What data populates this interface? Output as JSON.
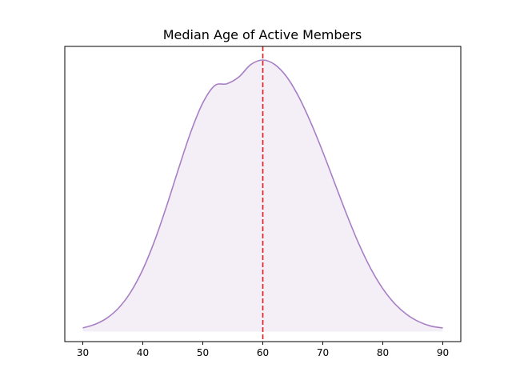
{
  "chart_data": {
    "type": "area",
    "title": "Median Age of Active Members",
    "xlabel": "",
    "ylabel": "",
    "xlim": [
      27,
      93
    ],
    "ylim": [
      -0.00124,
      0.035
    ],
    "x_ticks": [
      30,
      40,
      50,
      60,
      70,
      80,
      90
    ],
    "x_tick_labels": [
      "30",
      "40",
      "50",
      "60",
      "70",
      "80",
      "90"
    ],
    "y_ticks_visible": false,
    "grid": false,
    "legend": "none",
    "series": [
      {
        "x": [
          30,
          32,
          34,
          36,
          38,
          40,
          42,
          44,
          46,
          48,
          50,
          52,
          54,
          56,
          58,
          60,
          62,
          64,
          66,
          68,
          70,
          72,
          74,
          76,
          78,
          80,
          82,
          84,
          86,
          88,
          90
        ],
        "y": [
          0.00044,
          0.00087,
          0.00164,
          0.00291,
          0.00486,
          0.00761,
          0.0112,
          0.01547,
          0.02008,
          0.02449,
          0.02806,
          0.0302,
          0.03041,
          0.03124,
          0.03277,
          0.03333,
          0.03277,
          0.03124,
          0.0288,
          0.02565,
          0.02205,
          0.01819,
          0.01434,
          0.01077,
          0.00771,
          0.00526,
          0.00341,
          0.00209,
          0.00121,
          0.00067,
          0.00044
        ]
      }
    ],
    "reference_line": {
      "x": 60,
      "style": "dashed"
    },
    "colors": {
      "line": "#a67fc4",
      "fill": "#f4eef7",
      "reference": "#e31a1c"
    }
  }
}
